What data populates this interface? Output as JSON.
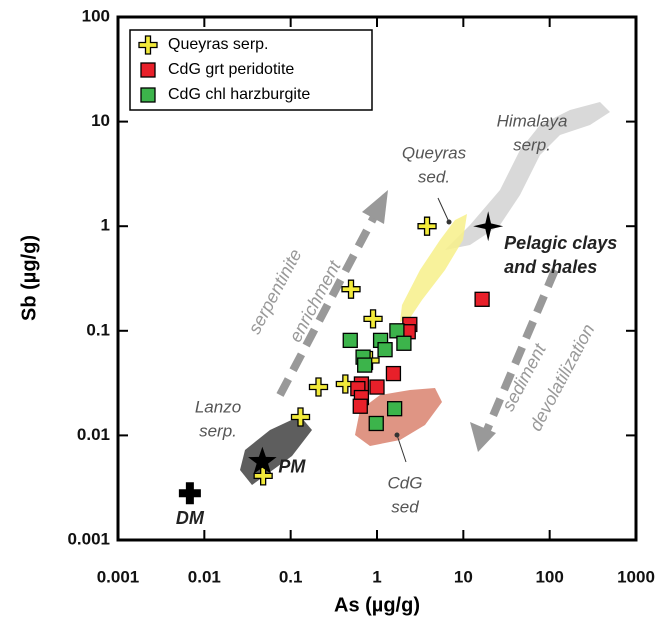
{
  "chart_data": {
    "type": "scatter",
    "x_label": "As (µg/g)",
    "y_label": "Sb (µg/g)",
    "xscale": "log",
    "yscale": "log",
    "xlim": [
      0.001,
      1000
    ],
    "ylim": [
      0.001,
      100
    ],
    "xticks": [
      0.001,
      0.01,
      0.1,
      1,
      10,
      100,
      1000
    ],
    "yticks": [
      0.001,
      0.01,
      0.1,
      1,
      10,
      100
    ],
    "legend": "upper left",
    "series": [
      {
        "name": "Queyras serp.",
        "marker": "cross",
        "color": "#f2ea3a",
        "x": [
          3.8,
          0.5,
          0.9,
          0.83,
          0.21,
          0.43,
          0.13,
          0.048
        ],
        "values": [
          1.0,
          0.25,
          0.13,
          0.052,
          0.029,
          0.031,
          0.015,
          0.0041
        ]
      },
      {
        "name": "CdG grt peridotite",
        "marker": "square",
        "color": "#e8202a",
        "x": [
          16.5,
          2.4,
          2.3,
          1.55,
          1.0,
          0.66,
          0.6,
          0.66,
          0.64
        ],
        "values": [
          0.2,
          0.115,
          0.098,
          0.039,
          0.029,
          0.031,
          0.028,
          0.023,
          0.019
        ]
      },
      {
        "name": "CdG chl harzburgite",
        "marker": "square",
        "color": "#3cb44b",
        "x": [
          0.49,
          1.7,
          1.1,
          1.24,
          2.05,
          0.69,
          0.72,
          1.6,
          0.98
        ],
        "values": [
          0.081,
          0.1,
          0.081,
          0.066,
          0.076,
          0.056,
          0.047,
          0.018,
          0.013
        ]
      }
    ],
    "reference_points": [
      {
        "label": [
          "DM"
        ],
        "marker": "plus",
        "x": 0.0068,
        "y": 0.0028
      },
      {
        "label": [
          "PM"
        ],
        "marker": "star",
        "x": 0.047,
        "y": 0.0056
      },
      {
        "label": [
          "Pelagic clays",
          "and shales"
        ],
        "marker": "star4",
        "x": 19.4,
        "y": 1.0
      }
    ],
    "annotations": [
      {
        "text": [
          "Himalaya",
          "serp."
        ]
      },
      {
        "text": [
          "Queyras",
          "sed."
        ]
      },
      {
        "text": [
          "Lanzo",
          "serp."
        ]
      },
      {
        "text": [
          "CdG",
          "sed"
        ]
      },
      {
        "text": [
          "serpentinite",
          "enrichment"
        ]
      },
      {
        "text": [
          "sediment",
          "devolatilization"
        ]
      }
    ]
  }
}
